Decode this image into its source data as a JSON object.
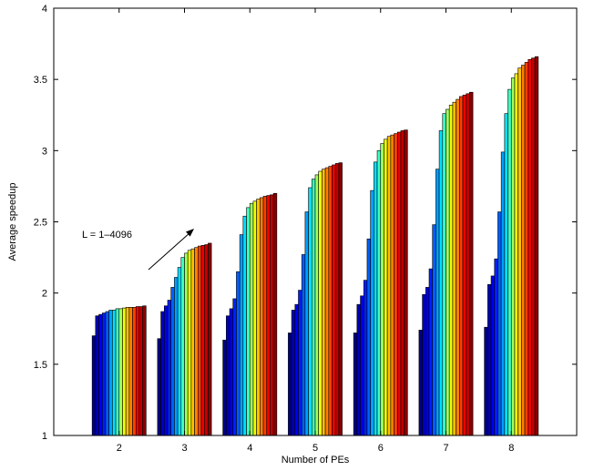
{
  "chart_data": {
    "type": "bar",
    "xlabel": "Number of PEs",
    "ylabel": "Average speedup",
    "ylim": [
      1,
      4
    ],
    "yticks": [
      "1",
      "1.5",
      "2",
      "2.5",
      "3",
      "3.5",
      "4"
    ],
    "categories": [
      "2",
      "3",
      "4",
      "5",
      "6",
      "7",
      "8"
    ],
    "annotation": "L = 1–4096",
    "colors": [
      "#000088",
      "#0000bb",
      "#0000ee",
      "#0020ff",
      "#0060ff",
      "#00a0ff",
      "#00e0ff",
      "#40ffc0",
      "#a0ff60",
      "#f0ff00",
      "#ffc000",
      "#ff8000",
      "#ff4000",
      "#f00000",
      "#c00000",
      "#880000"
    ],
    "groups": [
      [
        1.7,
        1.84,
        1.85,
        1.86,
        1.87,
        1.88,
        1.88,
        1.89,
        1.89,
        1.895,
        1.9,
        1.9,
        1.9,
        1.905,
        1.905,
        1.91
      ],
      [
        1.68,
        1.87,
        1.91,
        1.95,
        2.04,
        2.11,
        2.18,
        2.25,
        2.28,
        2.3,
        2.31,
        2.32,
        2.33,
        2.335,
        2.34,
        2.35
      ],
      [
        1.67,
        1.84,
        1.89,
        1.96,
        2.15,
        2.41,
        2.54,
        2.6,
        2.63,
        2.645,
        2.66,
        2.67,
        2.68,
        2.685,
        2.69,
        2.7
      ],
      [
        1.72,
        1.88,
        1.92,
        2.02,
        2.27,
        2.57,
        2.74,
        2.8,
        2.83,
        2.855,
        2.87,
        2.88,
        2.89,
        2.9,
        2.91,
        2.915
      ],
      [
        1.72,
        1.92,
        1.98,
        2.09,
        2.38,
        2.72,
        2.92,
        3.0,
        3.05,
        3.08,
        3.1,
        3.11,
        3.12,
        3.13,
        3.14,
        3.145
      ],
      [
        1.74,
        1.99,
        2.04,
        2.17,
        2.48,
        2.87,
        3.14,
        3.26,
        3.29,
        3.32,
        3.34,
        3.36,
        3.38,
        3.39,
        3.4,
        3.41
      ],
      [
        1.76,
        2.06,
        2.12,
        2.24,
        2.57,
        2.99,
        3.26,
        3.43,
        3.51,
        3.54,
        3.58,
        3.6,
        3.62,
        3.64,
        3.65,
        3.66
      ]
    ]
  }
}
